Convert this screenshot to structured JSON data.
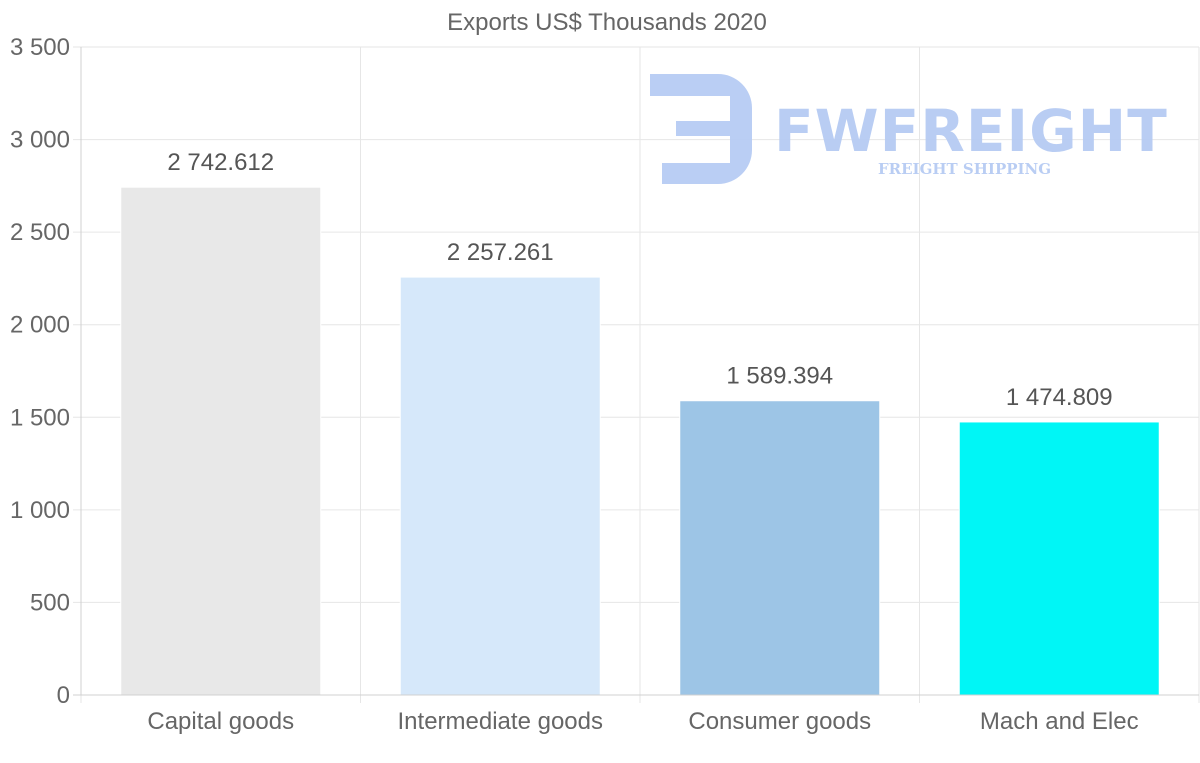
{
  "chart_data": {
    "type": "bar",
    "title": "Exports US$ Thousands 2020",
    "categories": [
      "Capital goods",
      "Intermediate goods",
      "Consumer goods",
      "Mach and Elec"
    ],
    "values": [
      2742.612,
      2257.261,
      1589.394,
      1474.809
    ],
    "value_labels": [
      "2 742.612",
      "2 257.261",
      "1 589.394",
      "1 474.809"
    ],
    "bar_colors": [
      "#e8e8e8",
      "#d6e8fa",
      "#9dc5e6",
      "#00f6f6"
    ],
    "ylim": [
      0,
      3500
    ],
    "yticks": [
      0,
      500,
      1000,
      1500,
      2000,
      2500,
      3000,
      3500
    ],
    "ytick_labels": [
      "0",
      "500",
      "1 000",
      "1 500",
      "2 000",
      "2 500",
      "3 000",
      "3 500"
    ],
    "xlabel": "",
    "ylabel": "",
    "grid": true
  },
  "watermark": {
    "brand": "FWFREIGHT",
    "tagline": "FREIGHT SHIPPING",
    "color": "#b6cbf3"
  }
}
